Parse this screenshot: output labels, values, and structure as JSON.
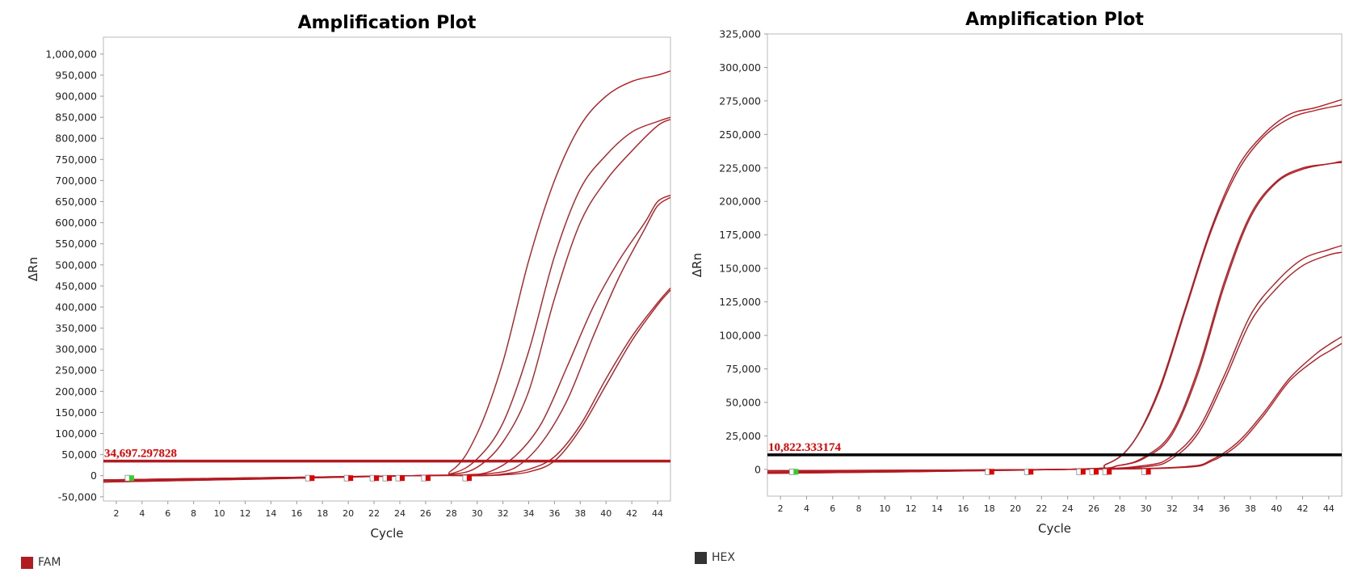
{
  "legend": {
    "left": {
      "label": "FAM",
      "color": "#b01c22"
    },
    "right": {
      "label": "HEX",
      "color": "#333333"
    }
  },
  "chart_data": [
    {
      "type": "line",
      "title": "Amplification Plot",
      "xlabel": "Cycle",
      "ylabel": "ΔRn",
      "xlim": [
        1,
        45
      ],
      "ylim": [
        -60000,
        1040000
      ],
      "xticks": [
        2,
        4,
        6,
        8,
        10,
        12,
        14,
        16,
        18,
        20,
        22,
        24,
        26,
        28,
        30,
        32,
        34,
        36,
        38,
        40,
        42,
        44
      ],
      "yticks": [
        -50000,
        0,
        50000,
        100000,
        150000,
        200000,
        250000,
        300000,
        350000,
        400000,
        450000,
        500000,
        550000,
        600000,
        650000,
        700000,
        750000,
        800000,
        850000,
        900000,
        950000,
        1000000
      ],
      "ytick_labels": [
        "-50,000",
        "0",
        "50,000",
        "100,000",
        "150,000",
        "200,000",
        "250,000",
        "300,000",
        "350,000",
        "400,000",
        "450,000",
        "500,000",
        "550,000",
        "600,000",
        "650,000",
        "700,000",
        "750,000",
        "800,000",
        "850,000",
        "900,000",
        "950,000",
        "1,000,000"
      ],
      "grid": false,
      "series_color": "#b01c22",
      "threshold": {
        "value": 34697.297828,
        "label": "34,697.297828",
        "color": "#b01c22"
      },
      "baseline_markers": [
        {
          "x": 3,
          "color": "#33cc33"
        },
        {
          "x": 17,
          "color": "#e00000"
        },
        {
          "x": 20,
          "color": "#e00000"
        },
        {
          "x": 22,
          "color": "#e00000"
        },
        {
          "x": 23,
          "color": "#e00000"
        },
        {
          "x": 24,
          "color": "#e00000"
        },
        {
          "x": 26,
          "color": "#e00000"
        },
        {
          "x": 29.2,
          "color": "#e00000"
        }
      ],
      "series": [
        {
          "x": [
            1,
            25,
            28,
            30,
            32,
            34,
            36,
            38,
            40,
            42,
            44,
            45
          ],
          "values": [
            -15000,
            0,
            12000,
            100000,
            270000,
            510000,
            700000,
            830000,
            900000,
            935000,
            950000,
            960000
          ]
        },
        {
          "x": [
            1,
            25,
            28,
            30,
            32,
            34,
            36,
            38,
            40,
            42,
            44,
            45
          ],
          "values": [
            -15000,
            0,
            5000,
            40000,
            125000,
            295000,
            520000,
            680000,
            760000,
            815000,
            840000,
            850000
          ]
        },
        {
          "x": [
            1,
            25,
            28,
            30,
            32,
            34,
            36,
            38,
            40,
            42,
            44,
            45
          ],
          "values": [
            -12000,
            0,
            3000,
            20000,
            80000,
            200000,
            420000,
            600000,
            700000,
            770000,
            830000,
            845000
          ]
        },
        {
          "x": [
            1,
            25,
            29,
            31,
            33,
            35,
            37,
            39,
            41,
            43,
            44,
            45
          ],
          "values": [
            -12000,
            0,
            2000,
            10000,
            48000,
            125000,
            260000,
            400000,
            510000,
            600000,
            650000,
            665000
          ]
        },
        {
          "x": [
            1,
            25,
            29,
            31,
            33,
            35,
            37,
            39,
            41,
            43,
            44,
            45
          ],
          "values": [
            -10000,
            0,
            1000,
            5000,
            20000,
            78000,
            180000,
            330000,
            470000,
            585000,
            640000,
            660000
          ]
        },
        {
          "x": [
            1,
            25,
            30,
            32,
            34,
            36,
            38,
            40,
            42,
            44,
            45
          ],
          "values": [
            -10000,
            0,
            0,
            4000,
            15000,
            45000,
            120000,
            230000,
            330000,
            410000,
            445000
          ]
        },
        {
          "x": [
            1,
            25,
            30,
            32,
            34,
            36,
            38,
            40,
            42,
            44,
            45
          ],
          "values": [
            -10000,
            0,
            0,
            2000,
            9000,
            35000,
            110000,
            215000,
            320000,
            405000,
            440000
          ]
        }
      ]
    },
    {
      "type": "line",
      "title": "Amplification Plot",
      "xlabel": "Cycle",
      "ylabel": "ΔRn",
      "xlim": [
        1,
        45
      ],
      "ylim": [
        -20000,
        325000
      ],
      "xticks": [
        2,
        4,
        6,
        8,
        10,
        12,
        14,
        16,
        18,
        20,
        22,
        24,
        26,
        28,
        30,
        32,
        34,
        36,
        38,
        40,
        42,
        44
      ],
      "yticks": [
        0,
        25000,
        50000,
        75000,
        100000,
        125000,
        150000,
        175000,
        200000,
        225000,
        250000,
        275000,
        300000,
        325000
      ],
      "ytick_labels": [
        "0",
        "25,000",
        "50,000",
        "75,000",
        "100,000",
        "125,000",
        "150,000",
        "175,000",
        "200,000",
        "225,000",
        "250,000",
        "275,000",
        "300,000",
        "325,000"
      ],
      "grid": false,
      "series_color": "#b01c22",
      "threshold": {
        "value": 10822.333174,
        "label": "10,822.333174",
        "color": "#000000"
      },
      "baseline_markers": [
        {
          "x": 3,
          "color": "#33cc33"
        },
        {
          "x": 18,
          "color": "#e00000"
        },
        {
          "x": 21,
          "color": "#e00000"
        },
        {
          "x": 25,
          "color": "#e00000"
        },
        {
          "x": 26,
          "color": "#e00000"
        },
        {
          "x": 27,
          "color": "#e00000"
        },
        {
          "x": 30,
          "color": "#e00000"
        }
      ],
      "series": [
        {
          "x": [
            1,
            24,
            27,
            29,
            31,
            33,
            35,
            37,
            39,
            41,
            43,
            45
          ],
          "values": [
            -3000,
            0,
            4000,
            20000,
            60000,
            120000,
            180000,
            225000,
            250000,
            265000,
            270000,
            276000
          ]
        },
        {
          "x": [
            1,
            24,
            27,
            29,
            31,
            33,
            35,
            37,
            39,
            41,
            43,
            45
          ],
          "values": [
            -3000,
            0,
            4000,
            20000,
            58000,
            118000,
            178000,
            222000,
            248000,
            262000,
            268000,
            272000
          ]
        },
        {
          "x": [
            1,
            24,
            28,
            30,
            32,
            34,
            36,
            38,
            40,
            42,
            44,
            45
          ],
          "values": [
            -2000,
            0,
            3000,
            10000,
            28000,
            75000,
            140000,
            190000,
            215000,
            225000,
            228000,
            230000
          ]
        },
        {
          "x": [
            1,
            24,
            28,
            30,
            32,
            34,
            36,
            38,
            40,
            42,
            44,
            45
          ],
          "values": [
            -2000,
            0,
            3000,
            9000,
            26000,
            72000,
            137000,
            188000,
            214000,
            224000,
            228000,
            229000
          ]
        },
        {
          "x": [
            1,
            24,
            30,
            32,
            34,
            36,
            38,
            40,
            42,
            44,
            45
          ],
          "values": [
            -2000,
            0,
            3000,
            10000,
            30000,
            70000,
            115000,
            140000,
            157000,
            164000,
            167000
          ]
        },
        {
          "x": [
            1,
            24,
            30,
            32,
            34,
            36,
            38,
            40,
            42,
            44,
            45
          ],
          "values": [
            -2000,
            0,
            2000,
            8000,
            27000,
            66000,
            110000,
            135000,
            152000,
            160000,
            162000
          ]
        },
        {
          "x": [
            1,
            25,
            33,
            35,
            37,
            39,
            41,
            43,
            44,
            45
          ],
          "values": [
            -1000,
            0,
            2000,
            7000,
            20000,
            42000,
            68000,
            86000,
            93000,
            99000
          ]
        },
        {
          "x": [
            1,
            25,
            33,
            35,
            37,
            39,
            41,
            43,
            44,
            45
          ],
          "values": [
            -1000,
            0,
            1500,
            6000,
            18000,
            40000,
            66000,
            82000,
            88000,
            94000
          ]
        }
      ]
    }
  ]
}
